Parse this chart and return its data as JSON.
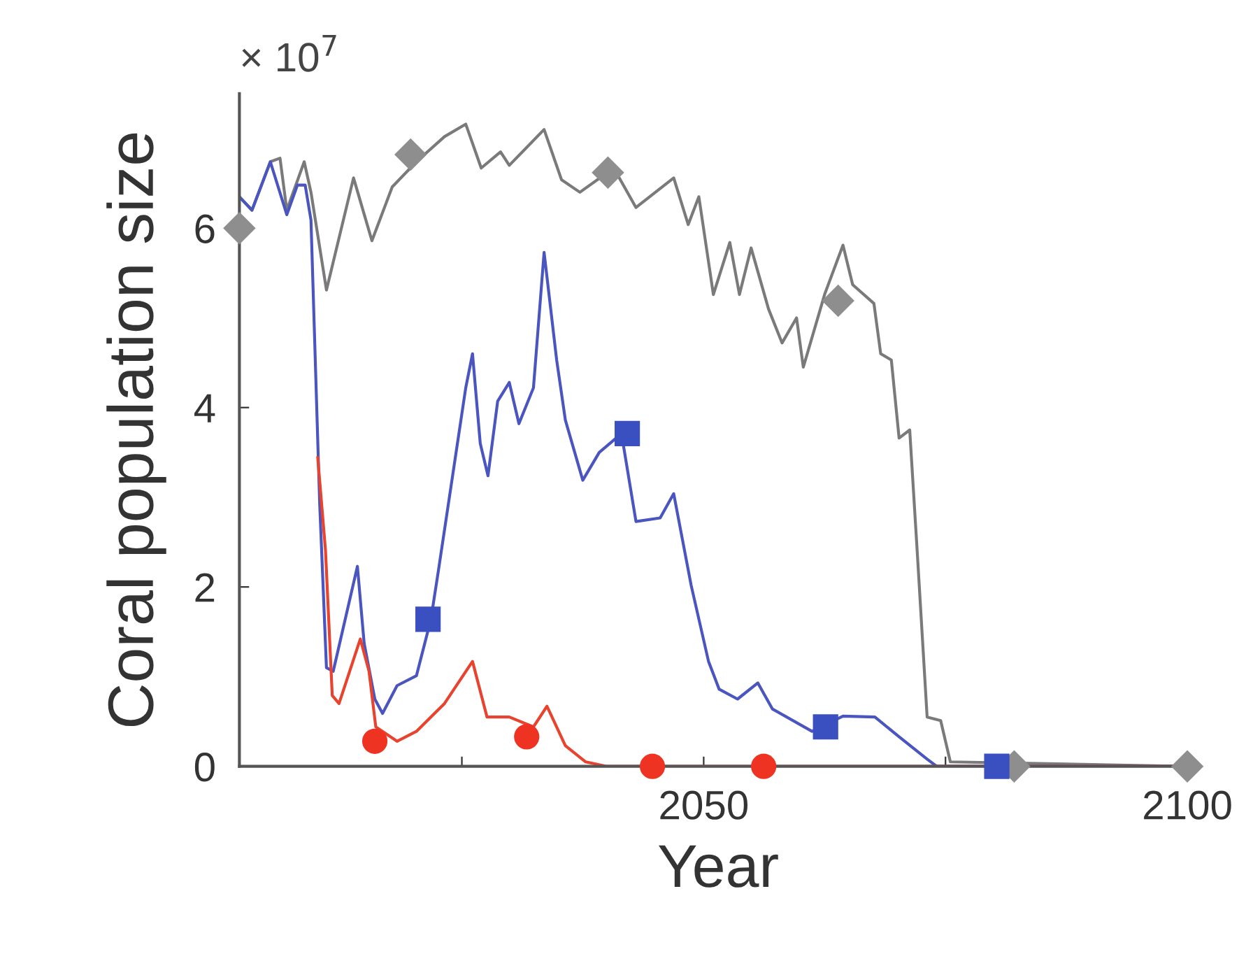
{
  "chart_data": {
    "type": "line",
    "xlabel": "Year",
    "ylabel": "Coral population size",
    "annotations": [
      "× 10$^{7}$"
    ],
    "xlim": [
      2002,
      2101
    ],
    "xticks": [
      {
        "value": 2025,
        "label": null
      },
      2050,
      {
        "value": 2075,
        "label": null
      },
      2100
    ],
    "ylim": [
      0,
      7.5
    ],
    "yticks": [
      0,
      2,
      4,
      6
    ],
    "grid": false,
    "line_style": "solid",
    "series": [
      {
        "color": "#7a7a7a",
        "x": [
          2002,
          2003.3,
          2005.2,
          2006.2,
          2006.9,
          2008.7,
          2009.4,
          2011.0,
          2013.8,
          2015.7,
          2017.8,
          2020.3,
          2023.2,
          2025.4,
          2027.0,
          2029.0,
          2029.9,
          2033.5,
          2035.3,
          2037.2,
          2040.7,
          2043.0,
          2046.9,
          2048.4,
          2049.5,
          2051.0,
          2052.7,
          2053.7,
          2054.9,
          2056.7,
          2058.1,
          2059.6,
          2060.3,
          2062.5,
          2064.4,
          2065.4,
          2067.6,
          2068.3,
          2069.4,
          2070.2,
          2071.3,
          2072.1,
          2073.1,
          2074.5,
          2075.5,
          2100
        ],
        "values": [
          6.35,
          6.2,
          6.74,
          6.78,
          6.2,
          6.74,
          6.4,
          5.31,
          6.56,
          5.86,
          6.46,
          6.74,
          7.02,
          7.16,
          6.67,
          6.85,
          6.7,
          7.1,
          6.54,
          6.4,
          6.67,
          6.23,
          6.56,
          6.04,
          6.35,
          5.26,
          5.84,
          5.26,
          5.78,
          5.1,
          4.72,
          5.0,
          4.45,
          5.26,
          5.81,
          5.37,
          5.16,
          4.6,
          4.53,
          3.66,
          3.75,
          2.35,
          0.55,
          0.51,
          0.05,
          0
        ]
      },
      {
        "color": "#4a55c0",
        "x": [
          2002,
          2003.3,
          2005.2,
          2006.9,
          2008.0,
          2008.8,
          2009.4,
          2010.3,
          2011.0,
          2011.7,
          2014.2,
          2014.9,
          2016.0,
          2016.8,
          2018.3,
          2020.3,
          2021.8,
          2022.6,
          2025.4,
          2026.1,
          2026.9,
          2027.7,
          2028.7,
          2029.9,
          2030.9,
          2032.4,
          2033.5,
          2034.8,
          2035.7,
          2037.5,
          2039.2,
          2041.5,
          2043.0,
          2045.5,
          2046.9,
          2048.7,
          2050.5,
          2051.6,
          2053.5,
          2055.6,
          2057.1,
          2061.2,
          2064.4,
          2067.7,
          2070.2,
          2073.1,
          2074.1,
          2100
        ],
        "values": [
          6.35,
          6.2,
          6.74,
          6.15,
          6.48,
          6.48,
          6.09,
          2.93,
          1.1,
          1.06,
          2.23,
          1.37,
          0.75,
          0.59,
          0.9,
          1.01,
          1.64,
          2.2,
          4.22,
          4.6,
          3.6,
          3.24,
          4.07,
          4.28,
          3.82,
          4.22,
          5.73,
          4.53,
          3.86,
          3.19,
          3.5,
          3.71,
          2.73,
          2.77,
          3.04,
          2.02,
          1.17,
          0.86,
          0.75,
          0.93,
          0.64,
          0.39,
          0.56,
          0.55,
          0.33,
          0.08,
          0,
          0
        ]
      },
      {
        "color": "#e8432e",
        "x": [
          2010.1,
          2010.9,
          2011.6,
          2012.3,
          2014.5,
          2015.4,
          2016.1,
          2018.3,
          2020.3,
          2023.2,
          2026.1,
          2027.6,
          2029.9,
          2032.4,
          2033.8,
          2035.7,
          2037.8,
          2040.0,
          2100
        ],
        "values": [
          3.44,
          2.41,
          0.79,
          0.7,
          1.42,
          1.06,
          0.44,
          0.28,
          0.39,
          0.7,
          1.17,
          0.55,
          0.55,
          0.44,
          0.67,
          0.23,
          0.05,
          0,
          0
        ]
      },
      {
        "type": "scatter",
        "marker": "diamond",
        "color": "#8e8e8e",
        "x": [
          2002,
          2019.7,
          2040.1,
          2063.9,
          2082.1,
          2100
        ],
        "values": [
          6.0,
          6.82,
          6.62,
          5.19,
          0,
          0
        ]
      },
      {
        "type": "scatter",
        "marker": "square",
        "color": "#3a4fc0",
        "x": [
          2021.5,
          2042.1,
          2062.6,
          2080.3
        ],
        "values": [
          1.64,
          3.71,
          0.44,
          0
        ]
      },
      {
        "type": "scatter",
        "marker": "circle",
        "color": "#ee3322",
        "x": [
          2016.0,
          2031.7,
          2044.7,
          2056.2
        ],
        "values": [
          0.28,
          0.33,
          0,
          0
        ]
      }
    ]
  }
}
